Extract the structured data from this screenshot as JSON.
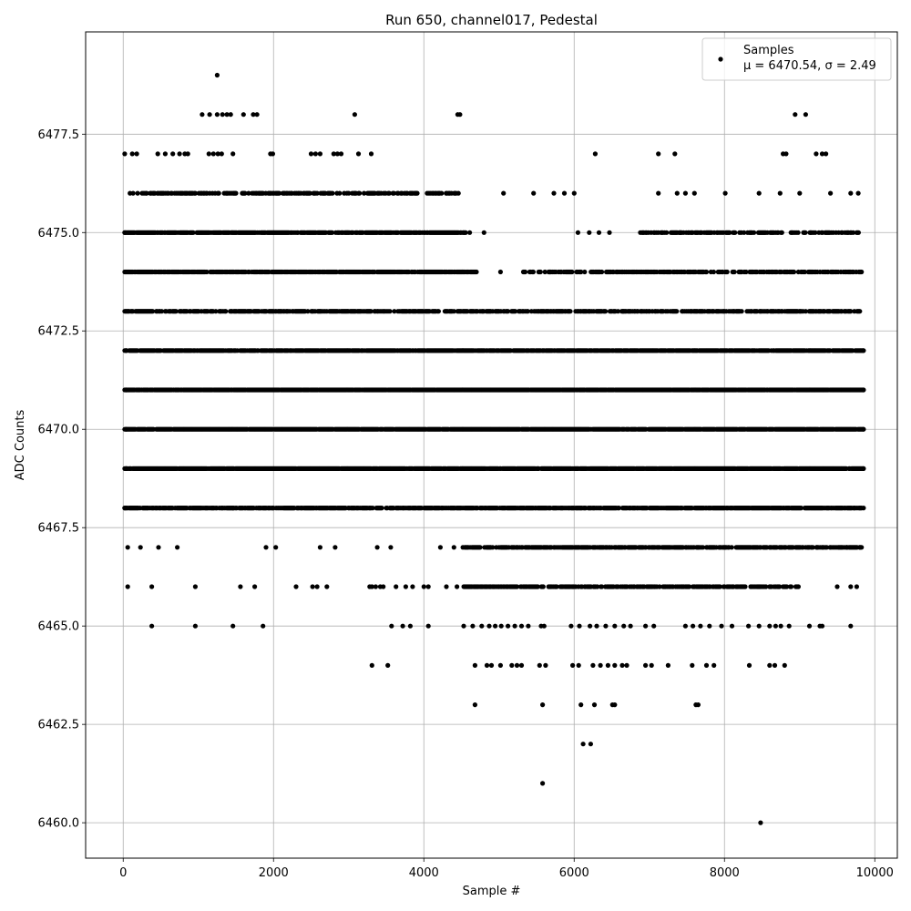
{
  "chart_data": {
    "type": "scatter",
    "title": "Run 650, channel017, Pedestal",
    "xlabel": "Sample #",
    "ylabel": "ADC Counts",
    "xlim": [
      -500,
      10300
    ],
    "ylim": [
      6459.1,
      6480.1
    ],
    "xticks": [
      0,
      2000,
      4000,
      6000,
      8000,
      10000
    ],
    "xtick_labels": [
      "0",
      "2000",
      "4000",
      "6000",
      "8000",
      "10000"
    ],
    "yticks": [
      6460.0,
      6462.5,
      6465.0,
      6467.5,
      6470.0,
      6472.5,
      6475.0,
      6477.5
    ],
    "ytick_labels": [
      "6460.0",
      "6462.5",
      "6465.0",
      "6467.5",
      "6470.0",
      "6472.5",
      "6475.0",
      "6477.5"
    ],
    "grid": true,
    "legend": {
      "placement": "top-right",
      "entries": [
        {
          "name": "Samples",
          "stats": "μ = 6470.54, σ = 2.49"
        }
      ]
    },
    "marker_color": "#000000",
    "series": [
      {
        "name": "Samples",
        "points": [
          [
            1250,
            6479
          ],
          [
            1050,
            6478
          ],
          [
            1150,
            6478
          ],
          [
            1250,
            6478
          ],
          [
            1320,
            6478
          ],
          [
            1380,
            6478
          ],
          [
            1430,
            6478
          ],
          [
            1600,
            6478
          ],
          [
            1730,
            6478
          ],
          [
            1780,
            6478
          ],
          [
            3080,
            6478
          ],
          [
            4450,
            6478
          ],
          [
            4480,
            6478
          ],
          [
            8940,
            6478
          ],
          [
            9080,
            6478
          ],
          [
            20,
            6477
          ],
          [
            120,
            6477
          ],
          [
            180,
            6477
          ],
          [
            460,
            6477
          ],
          [
            560,
            6477
          ],
          [
            660,
            6477
          ],
          [
            750,
            6477
          ],
          [
            820,
            6477
          ],
          [
            860,
            6477
          ],
          [
            1140,
            6477
          ],
          [
            1200,
            6477
          ],
          [
            1260,
            6477
          ],
          [
            1310,
            6477
          ],
          [
            1460,
            6477
          ],
          [
            1960,
            6477
          ],
          [
            1990,
            6477
          ],
          [
            2500,
            6477
          ],
          [
            2560,
            6477
          ],
          [
            2620,
            6477
          ],
          [
            2800,
            6477
          ],
          [
            2850,
            6477
          ],
          [
            2900,
            6477
          ],
          [
            3130,
            6477
          ],
          [
            3300,
            6477
          ],
          [
            6280,
            6477
          ],
          [
            7120,
            6477
          ],
          [
            7340,
            6477
          ],
          [
            8780,
            6477
          ],
          [
            8820,
            6477
          ],
          [
            9220,
            6477
          ],
          [
            9300,
            6477
          ],
          [
            9350,
            6477
          ],
          [
            90,
            6476
          ],
          [
            4460,
            6476
          ],
          [
            5060,
            6476
          ],
          [
            5460,
            6476
          ],
          [
            5730,
            6476
          ],
          [
            5870,
            6476
          ],
          [
            6000,
            6476
          ],
          [
            7120,
            6476
          ],
          [
            7370,
            6476
          ],
          [
            7480,
            6476
          ],
          [
            7600,
            6476
          ],
          [
            8010,
            6476
          ],
          [
            8460,
            6476
          ],
          [
            8740,
            6476
          ],
          [
            9000,
            6476
          ],
          [
            9410,
            6476
          ],
          [
            9680,
            6476
          ],
          [
            9780,
            6476
          ],
          [
            20,
            6475
          ],
          [
            4610,
            6475
          ],
          [
            4800,
            6475
          ],
          [
            6050,
            6475
          ],
          [
            6200,
            6475
          ],
          [
            6330,
            6475
          ],
          [
            6470,
            6475
          ],
          [
            7230,
            6475
          ],
          [
            7410,
            6475
          ],
          [
            5020,
            6474
          ],
          [
            5680,
            6474
          ],
          [
            6310,
            6474
          ],
          [
            7720,
            6474
          ],
          [
            6650,
            6473
          ],
          [
            40,
            6472
          ],
          [
            9850,
            6472
          ],
          [
            40,
            6471
          ],
          [
            9850,
            6471
          ],
          [
            40,
            6470
          ],
          [
            9850,
            6470
          ],
          [
            40,
            6469
          ],
          [
            9850,
            6469
          ],
          [
            20,
            6468
          ],
          [
            1460,
            6468
          ],
          [
            9850,
            6468
          ],
          [
            60,
            6467
          ],
          [
            230,
            6467
          ],
          [
            470,
            6467
          ],
          [
            720,
            6467
          ],
          [
            1900,
            6467
          ],
          [
            2030,
            6467
          ],
          [
            2620,
            6467
          ],
          [
            2820,
            6467
          ],
          [
            3380,
            6467
          ],
          [
            3560,
            6467
          ],
          [
            4220,
            6467
          ],
          [
            4400,
            6467
          ],
          [
            9230,
            6467
          ],
          [
            9360,
            6467
          ],
          [
            9630,
            6467
          ],
          [
            9800,
            6467
          ],
          [
            60,
            6466
          ],
          [
            380,
            6466
          ],
          [
            960,
            6466
          ],
          [
            1560,
            6466
          ],
          [
            1750,
            6466
          ],
          [
            2300,
            6466
          ],
          [
            2520,
            6466
          ],
          [
            2580,
            6466
          ],
          [
            2710,
            6466
          ],
          [
            3280,
            6466
          ],
          [
            3310,
            6466
          ],
          [
            3360,
            6466
          ],
          [
            3420,
            6466
          ],
          [
            3460,
            6466
          ],
          [
            3630,
            6466
          ],
          [
            3760,
            6466
          ],
          [
            3850,
            6466
          ],
          [
            4000,
            6466
          ],
          [
            4060,
            6466
          ],
          [
            4300,
            6466
          ],
          [
            4440,
            6466
          ],
          [
            9500,
            6466
          ],
          [
            9680,
            6466
          ],
          [
            9760,
            6466
          ],
          [
            380,
            6465
          ],
          [
            960,
            6465
          ],
          [
            1460,
            6465
          ],
          [
            1860,
            6465
          ],
          [
            3570,
            6465
          ],
          [
            3720,
            6465
          ],
          [
            3820,
            6465
          ],
          [
            4060,
            6465
          ],
          [
            4530,
            6465
          ],
          [
            4650,
            6465
          ],
          [
            4770,
            6465
          ],
          [
            4870,
            6465
          ],
          [
            4950,
            6465
          ],
          [
            5030,
            6465
          ],
          [
            5120,
            6465
          ],
          [
            5210,
            6465
          ],
          [
            5300,
            6465
          ],
          [
            5390,
            6465
          ],
          [
            5560,
            6465
          ],
          [
            5600,
            6465
          ],
          [
            5960,
            6465
          ],
          [
            6070,
            6465
          ],
          [
            6210,
            6465
          ],
          [
            6300,
            6465
          ],
          [
            6420,
            6465
          ],
          [
            6540,
            6465
          ],
          [
            6660,
            6465
          ],
          [
            6750,
            6465
          ],
          [
            6950,
            6465
          ],
          [
            7060,
            6465
          ],
          [
            7480,
            6465
          ],
          [
            7580,
            6465
          ],
          [
            7680,
            6465
          ],
          [
            7800,
            6465
          ],
          [
            7960,
            6465
          ],
          [
            8100,
            6465
          ],
          [
            8320,
            6465
          ],
          [
            8460,
            6465
          ],
          [
            8600,
            6465
          ],
          [
            8680,
            6465
          ],
          [
            8750,
            6465
          ],
          [
            8860,
            6465
          ],
          [
            9130,
            6465
          ],
          [
            9270,
            6465
          ],
          [
            9300,
            6465
          ],
          [
            9680,
            6465
          ],
          [
            3310,
            6464
          ],
          [
            3520,
            6464
          ],
          [
            4680,
            6464
          ],
          [
            4840,
            6464
          ],
          [
            4900,
            6464
          ],
          [
            5020,
            6464
          ],
          [
            5170,
            6464
          ],
          [
            5240,
            6464
          ],
          [
            5300,
            6464
          ],
          [
            5540,
            6464
          ],
          [
            5620,
            6464
          ],
          [
            5980,
            6464
          ],
          [
            6060,
            6464
          ],
          [
            6250,
            6464
          ],
          [
            6350,
            6464
          ],
          [
            6450,
            6464
          ],
          [
            6540,
            6464
          ],
          [
            6640,
            6464
          ],
          [
            6700,
            6464
          ],
          [
            6950,
            6464
          ],
          [
            7030,
            6464
          ],
          [
            7250,
            6464
          ],
          [
            7570,
            6464
          ],
          [
            7760,
            6464
          ],
          [
            7860,
            6464
          ],
          [
            8330,
            6464
          ],
          [
            8600,
            6464
          ],
          [
            8670,
            6464
          ],
          [
            8800,
            6464
          ],
          [
            4680,
            6463
          ],
          [
            5580,
            6463
          ],
          [
            6090,
            6463
          ],
          [
            6270,
            6463
          ],
          [
            6510,
            6463
          ],
          [
            6540,
            6463
          ],
          [
            7620,
            6463
          ],
          [
            7650,
            6463
          ],
          [
            6120,
            6462
          ],
          [
            6220,
            6462
          ],
          [
            5580,
            6461
          ],
          [
            8480,
            6460
          ]
        ],
        "dense_rows": [
          {
            "y": 6476,
            "x_from": 120,
            "x_to": 4440,
            "density": 0.55
          },
          {
            "y": 6475,
            "x_from": 20,
            "x_to": 4560,
            "density": 0.85
          },
          {
            "y": 6475,
            "x_from": 6880,
            "x_to": 9800,
            "density": 0.55
          },
          {
            "y": 6474,
            "x_from": 20,
            "x_to": 4700,
            "density": 0.85
          },
          {
            "y": 6474,
            "x_from": 5300,
            "x_to": 9850,
            "density": 0.6
          },
          {
            "y": 6473,
            "x_from": 20,
            "x_to": 9850,
            "density": 0.7
          },
          {
            "y": 6472,
            "x_from": 20,
            "x_to": 9850,
            "density": 0.9
          },
          {
            "y": 6471,
            "x_from": 20,
            "x_to": 9850,
            "density": 0.95
          },
          {
            "y": 6470,
            "x_from": 20,
            "x_to": 9850,
            "density": 0.95
          },
          {
            "y": 6469,
            "x_from": 20,
            "x_to": 9850,
            "density": 0.95
          },
          {
            "y": 6468,
            "x_from": 20,
            "x_to": 9850,
            "density": 0.8
          },
          {
            "y": 6467,
            "x_from": 4520,
            "x_to": 9850,
            "density": 0.7
          },
          {
            "y": 6466,
            "x_from": 4520,
            "x_to": 9000,
            "density": 0.65
          }
        ]
      }
    ]
  }
}
